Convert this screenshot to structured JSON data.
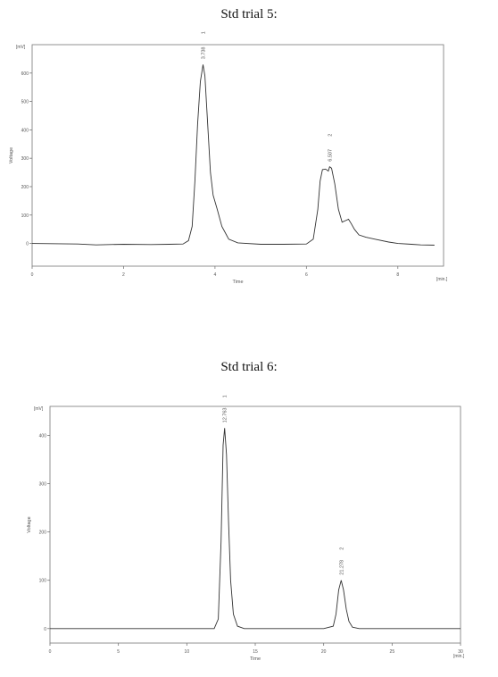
{
  "chart_data": [
    {
      "type": "line",
      "title": "Std trial 5:",
      "unit_label": "[mV]",
      "ylabel": "Voltage",
      "xlabel": "Time",
      "x_unit_label": "[min.]",
      "xlim": [
        0,
        9
      ],
      "ylim": [
        -80,
        700
      ],
      "x_ticks": [
        "0",
        "2",
        "4",
        "6",
        "8"
      ],
      "y_ticks": [
        "0",
        "100",
        "200",
        "300",
        "400",
        "500",
        "600"
      ],
      "peaks": [
        {
          "id": "1",
          "rt": "3.738",
          "x": 3.738,
          "y": 630
        },
        {
          "id": "2",
          "rt": "6.507",
          "x": 6.507,
          "y": 270
        }
      ],
      "series": [
        {
          "x": [
            0,
            1.0,
            1.4,
            2.0,
            2.6,
            3.0,
            3.3,
            3.42,
            3.5,
            3.56,
            3.62,
            3.68,
            3.738,
            3.78,
            3.84,
            3.9,
            3.96,
            4.05,
            4.15,
            4.3,
            4.5,
            5.0,
            5.5,
            6.0,
            6.15,
            6.25,
            6.3,
            6.35,
            6.42,
            6.48,
            6.507,
            6.55,
            6.62,
            6.7,
            6.78,
            6.85,
            6.92,
            6.98,
            7.05,
            7.15,
            7.3,
            7.5,
            7.8,
            8.0,
            8.3,
            8.5,
            8.8
          ],
          "y": [
            0,
            -2,
            -5,
            -3,
            -4,
            -3,
            -2,
            10,
            60,
            220,
            420,
            570,
            630,
            590,
            420,
            250,
            170,
            120,
            60,
            15,
            2,
            -3,
            -3,
            -2,
            15,
            120,
            220,
            260,
            262,
            255,
            270,
            265,
            210,
            120,
            75,
            80,
            85,
            70,
            50,
            30,
            22,
            15,
            5,
            0,
            -3,
            -5,
            -6
          ]
        }
      ]
    },
    {
      "type": "line",
      "title": "Std trial 6:",
      "unit_label": "[mV]",
      "ylabel": "Voltage",
      "xlabel": "Time",
      "x_unit_label": "[min.]",
      "xlim": [
        0,
        30
      ],
      "ylim": [
        -30,
        460
      ],
      "x_ticks": [
        "0",
        "5",
        "10",
        "15",
        "20",
        "25",
        "30"
      ],
      "y_ticks": [
        "0",
        "100",
        "200",
        "300",
        "400"
      ],
      "peaks": [
        {
          "id": "1",
          "rt": "12.763",
          "x": 12.763,
          "y": 415
        },
        {
          "id": "2",
          "rt": "21.278",
          "x": 21.278,
          "y": 100
        }
      ],
      "series": [
        {
          "x": [
            0,
            5,
            10,
            12.0,
            12.3,
            12.5,
            12.65,
            12.763,
            12.9,
            13.05,
            13.2,
            13.4,
            13.7,
            14.2,
            16,
            20,
            20.7,
            20.9,
            21.1,
            21.278,
            21.45,
            21.65,
            21.85,
            22.1,
            22.6,
            25,
            28,
            30
          ],
          "y": [
            0,
            0,
            0,
            0,
            20,
            180,
            380,
            415,
            360,
            220,
            100,
            30,
            5,
            0,
            0,
            0,
            5,
            30,
            80,
            100,
            80,
            40,
            15,
            3,
            0,
            0,
            0,
            0
          ]
        }
      ]
    }
  ]
}
